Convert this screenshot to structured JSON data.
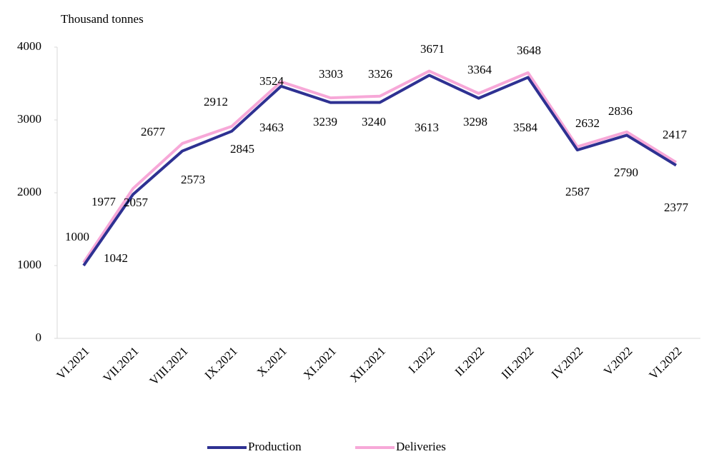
{
  "chart_data": {
    "type": "line",
    "y_axis_label": "Thousand tonnes",
    "categories": [
      "VI.2021",
      "VII.2021",
      "VIII.2021",
      "IX.2021",
      "X.2021",
      "XI.2021",
      "XII.2021",
      "I.2022",
      "II.2022",
      "III.2022",
      "IV.2022",
      "V.2022",
      "VI.2022"
    ],
    "series": [
      {
        "name": "Production",
        "color": "#2e3192",
        "values": [
          1000,
          1977,
          2573,
          2845,
          3463,
          3239,
          3240,
          3613,
          3298,
          3584,
          2587,
          2790,
          2377
        ]
      },
      {
        "name": "Deliveries",
        "color": "#f7a8d8",
        "values": [
          1042,
          2057,
          2677,
          2912,
          3524,
          3303,
          3326,
          3671,
          3364,
          3648,
          2632,
          2836,
          2417
        ]
      }
    ],
    "ylim": [
      0,
      4000
    ],
    "yticks": [
      0,
      1000,
      2000,
      3000,
      4000
    ],
    "grid": false,
    "legend": "bottom"
  }
}
